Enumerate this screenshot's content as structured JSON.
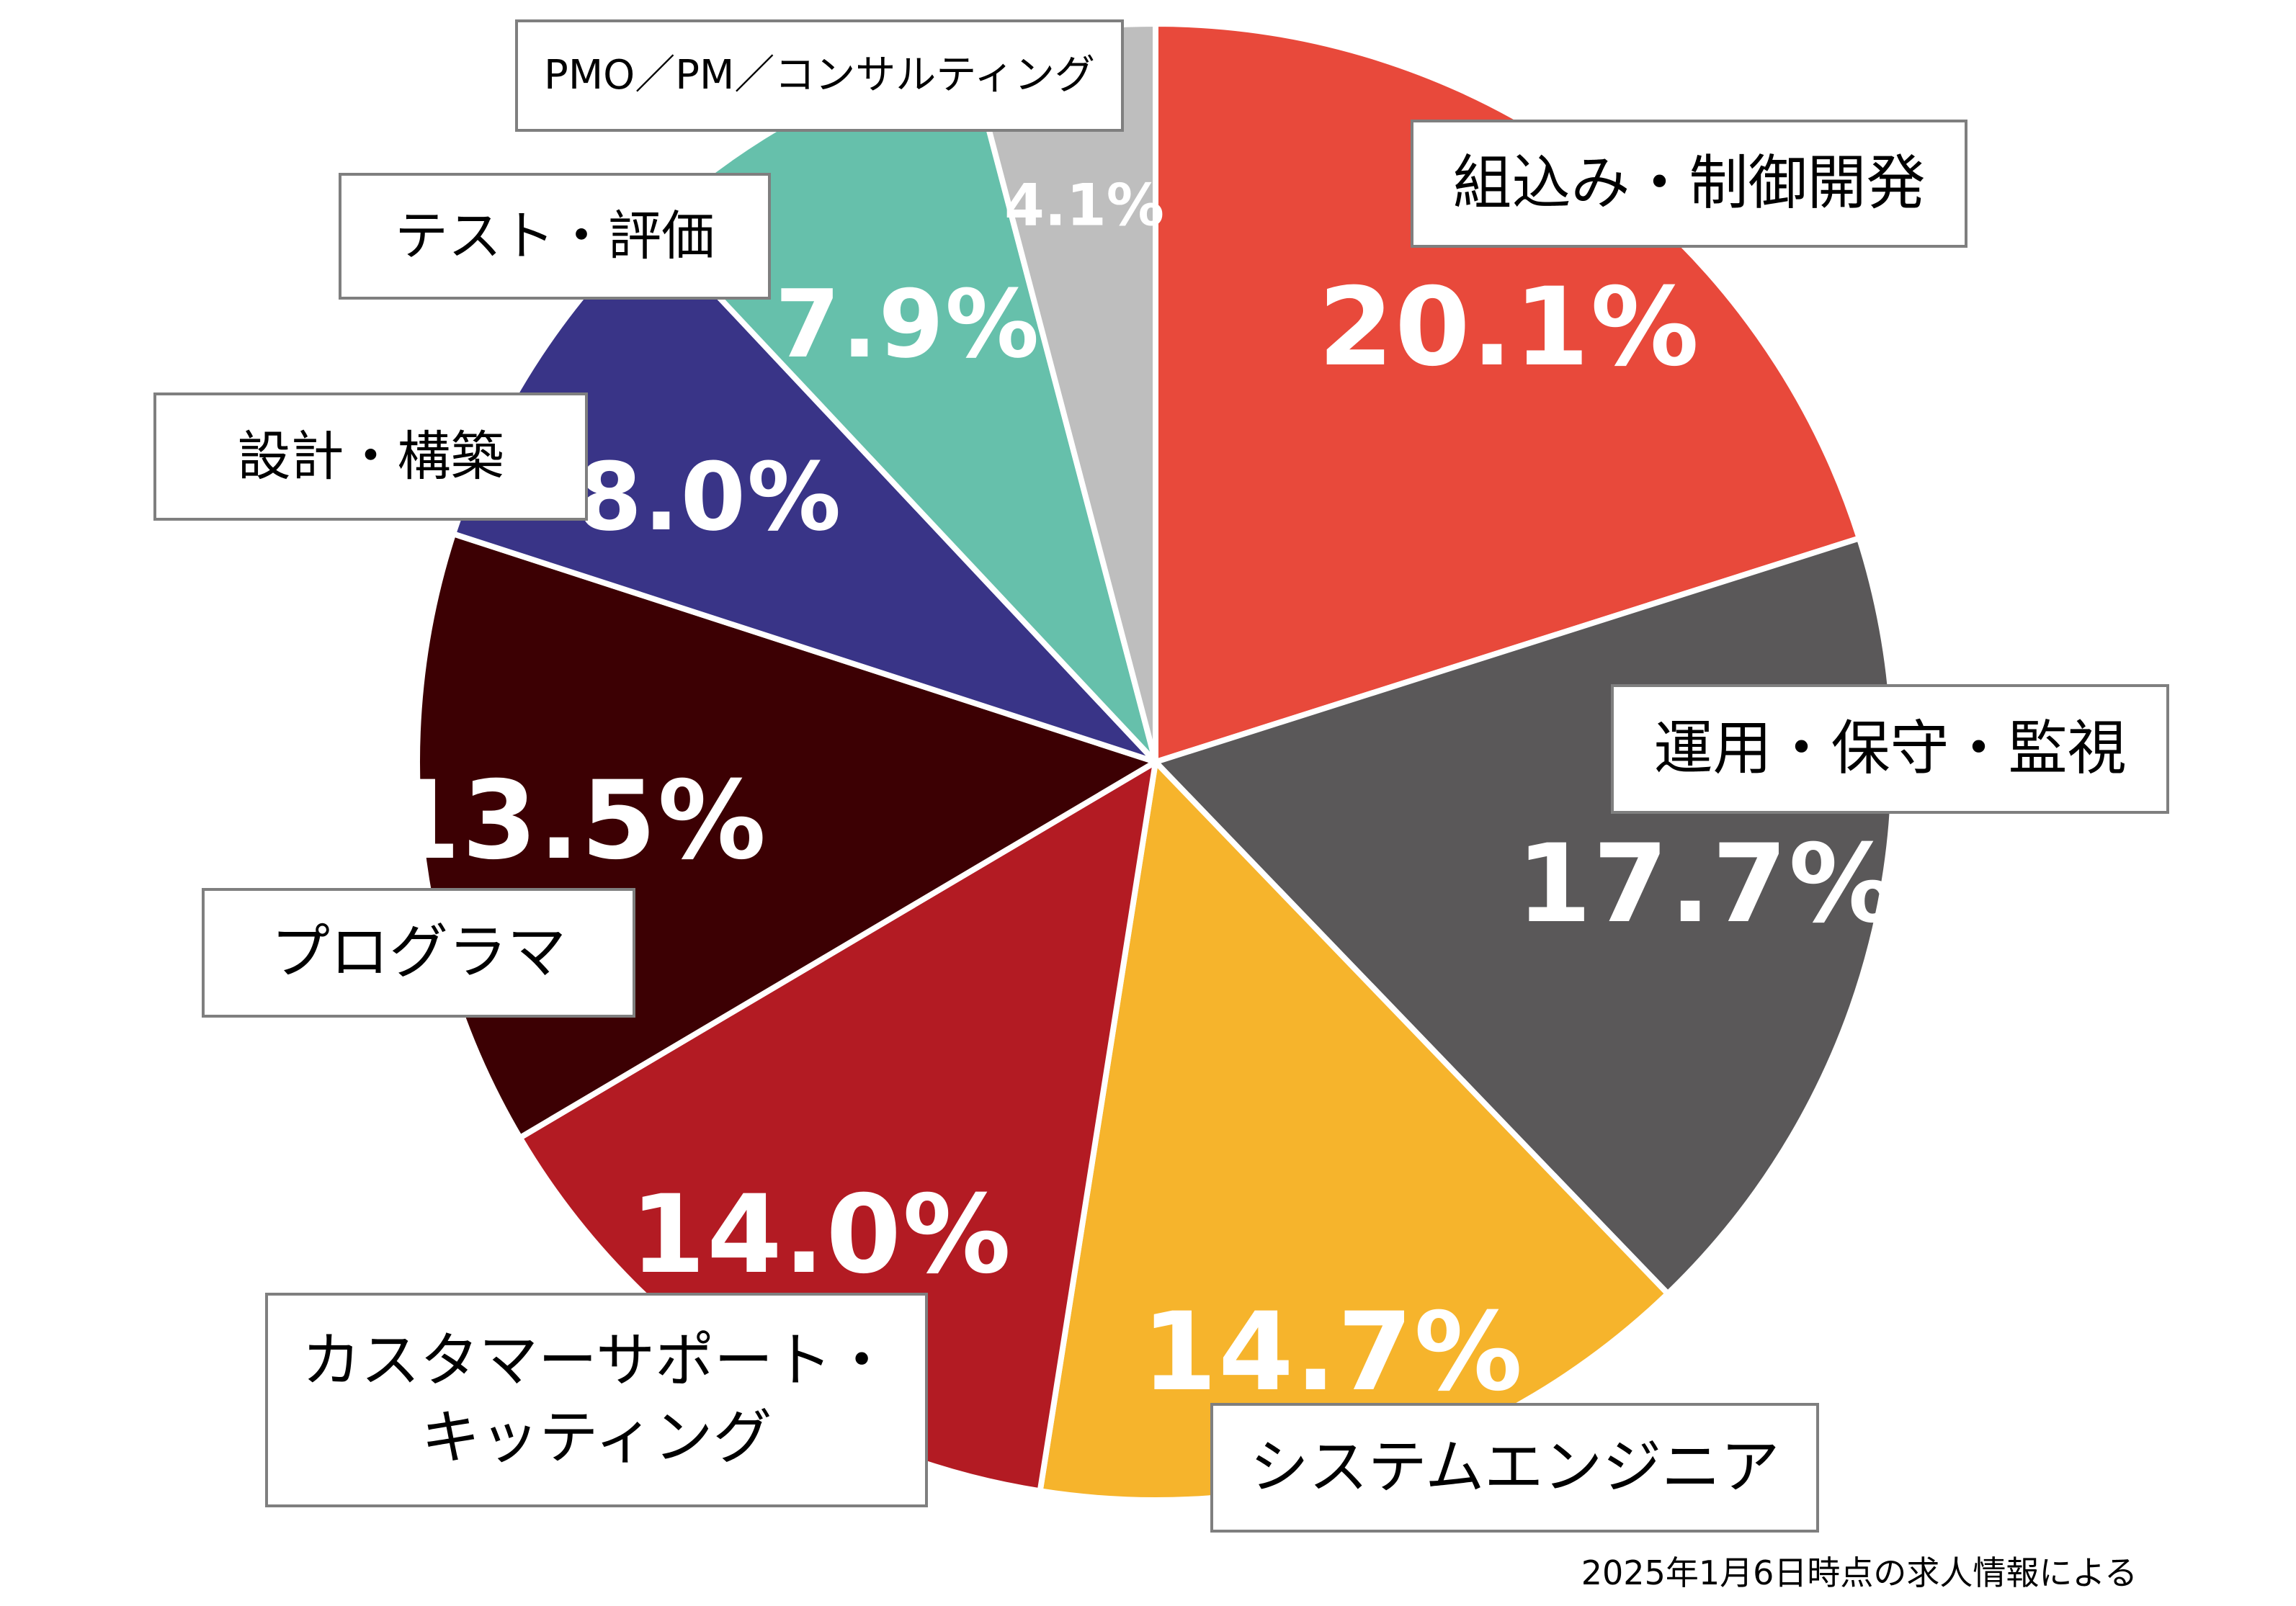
{
  "chart_data": {
    "type": "pie",
    "title": "",
    "start_angle_deg": 0,
    "direction": "clockwise",
    "categories": [
      "組込み・制御開発",
      "運用・保守・監視",
      "システムエンジニア",
      "カスタマーサポート・キッティング",
      "プログラマ",
      "設計・構築",
      "テスト・評価",
      "PMO／PM／コンサルティング"
    ],
    "values": [
      20.1,
      17.7,
      14.7,
      14.0,
      13.5,
      8.0,
      7.9,
      4.1
    ],
    "unit": "%",
    "colors": [
      "#e8493b",
      "#5a5859",
      "#f6b42c",
      "#b31b23",
      "#3c0003",
      "#393487",
      "#66c0ab",
      "#bebebe"
    ],
    "data_labels": [
      "20.1%",
      "17.7%",
      "14.7%",
      "14.0%",
      "13.5%",
      "8.0%",
      "7.9%",
      "4.1%"
    ],
    "annotation": "2025年1月6日時点の求人情報による",
    "legend": "none (boxed category labels placed next to slices)"
  },
  "slices": [
    {
      "name": "組込み・制御開発",
      "pct": "20.1%",
      "label": "組込み・制御開発"
    },
    {
      "name": "運用・保守・監視",
      "pct": "17.7%",
      "label": "運用・保守・監視"
    },
    {
      "name": "システムエンジニア",
      "pct": "14.7%",
      "label": "システムエンジニア"
    },
    {
      "name": "カスタマーサポート・キッティング",
      "pct": "14.0%",
      "label": "カスタマーサポート・\nキッティング"
    },
    {
      "name": "プログラマ",
      "pct": "13.5%",
      "label": "プログラマ"
    },
    {
      "name": "設計・構築",
      "pct": "8.0%",
      "label": "設計・構築"
    },
    {
      "name": "テスト・評価",
      "pct": "7.9%",
      "label": "テスト・評価"
    },
    {
      "name": "PMO／PM／コンサルティング",
      "pct": "4.1%",
      "label": "PMO／PM／コンサルティング"
    }
  ],
  "footnote": "2025年1月6日時点の求人情報による"
}
